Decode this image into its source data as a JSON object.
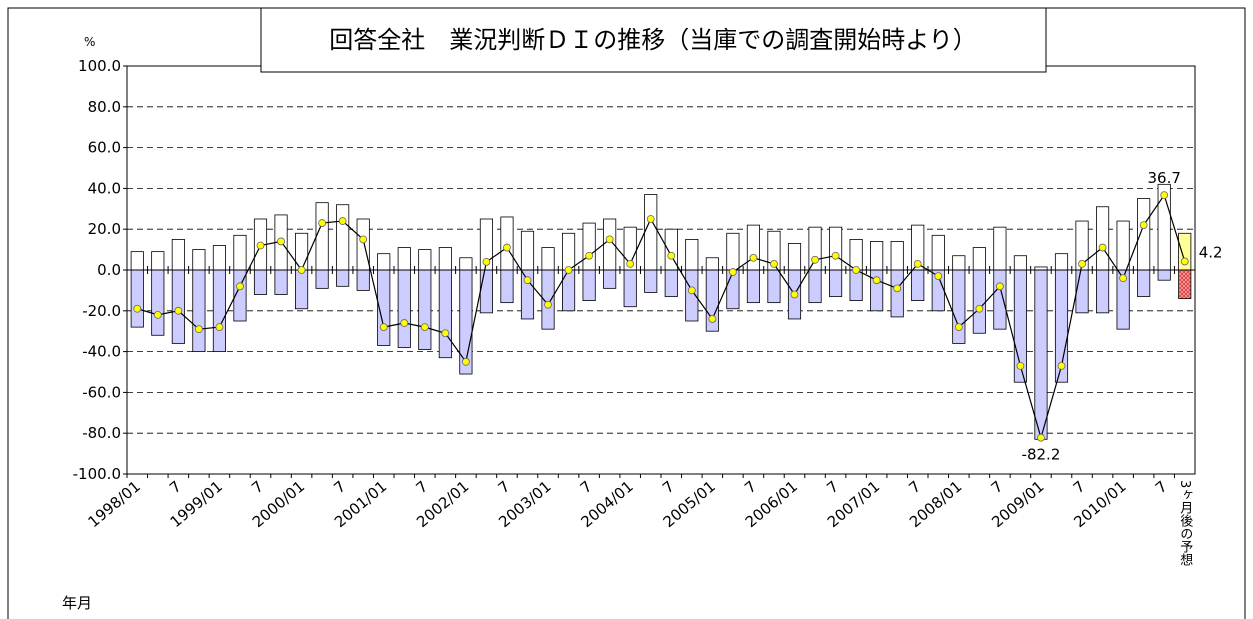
{
  "chart_data": {
    "type": "combo",
    "title": "回答全社　業況判断ＤＩの推移（当庫での調査開始時より）",
    "y_label": "%",
    "x_label": "年月",
    "categories": [
      "1998/01",
      null,
      "7",
      null,
      "1999/01",
      null,
      "7",
      null,
      "2000/01",
      null,
      "7",
      null,
      "2001/01",
      null,
      "7",
      null,
      "2002/01",
      null,
      "7",
      null,
      "2003/01",
      null,
      "7",
      null,
      "2004/01",
      null,
      "7",
      null,
      "2005/01",
      null,
      "7",
      null,
      "2006/01",
      null,
      "7",
      null,
      "2007/01",
      null,
      "7",
      null,
      "2008/01",
      null,
      "7",
      null,
      "2009/01",
      null,
      "7",
      null,
      "2010/01",
      null,
      "7",
      "3ヶ月後の予想"
    ],
    "series": [
      {
        "type": "bar",
        "color": "#ffffff",
        "last_color": "#ffff99",
        "values": [
          9,
          9,
          15,
          10,
          12,
          17,
          25,
          27,
          18,
          33,
          32,
          25,
          8,
          11,
          10,
          11,
          6,
          25,
          26,
          19,
          11,
          18,
          23,
          25,
          21,
          37,
          20,
          15,
          6,
          18,
          22,
          19,
          13,
          21,
          21,
          15,
          14,
          14,
          22,
          17,
          7,
          11,
          21,
          7,
          1.5,
          8,
          24,
          31,
          24,
          35,
          42,
          18
        ]
      },
      {
        "type": "bar",
        "color": "#ccccff",
        "last_color": "#ff9999",
        "values": [
          -28,
          -32,
          -36,
          -40,
          -40,
          -25,
          -12,
          -12,
          -19,
          -9,
          -8,
          -10,
          -37,
          -38,
          -39,
          -43,
          -51,
          -21,
          -16,
          -24,
          -29,
          -20,
          -15,
          -9,
          -18,
          -11,
          -13,
          -25,
          -30,
          -19,
          -16,
          -16,
          -24,
          -16,
          -13,
          -15,
          -20,
          -23,
          -15,
          -20,
          -36,
          -31,
          -29,
          -55,
          -83,
          -55,
          -21,
          -21,
          -29,
          -13,
          -5,
          -14
        ]
      },
      {
        "type": "line",
        "color": "#000000",
        "marker_color": "#ffff00",
        "values": [
          -19,
          -22,
          -20,
          -29,
          -28,
          -8,
          12,
          14,
          0,
          23,
          24,
          15,
          -28,
          -26,
          -28,
          -31,
          -45,
          4,
          11,
          -5,
          -17,
          0,
          7,
          15,
          3,
          25,
          7,
          -10,
          -24,
          -1,
          6,
          3,
          -12,
          5,
          7,
          0,
          -5,
          -9,
          3,
          -3,
          -28,
          -19,
          -8,
          -47,
          -82.2,
          -47,
          3,
          11,
          -4,
          22,
          36.7,
          4.2
        ],
        "value_labels": [
          null,
          null,
          null,
          null,
          null,
          null,
          null,
          null,
          null,
          null,
          null,
          null,
          null,
          null,
          null,
          null,
          null,
          null,
          null,
          null,
          null,
          null,
          null,
          null,
          null,
          null,
          null,
          null,
          null,
          null,
          null,
          null,
          null,
          null,
          null,
          null,
          null,
          null,
          null,
          null,
          null,
          null,
          null,
          null,
          "-82.2",
          null,
          null,
          null,
          null,
          null,
          "36.7",
          "4.2"
        ]
      }
    ],
    "ylim": [
      -100,
      100
    ],
    "yticks": [
      {
        "value": -100,
        "label": "-100.0"
      },
      {
        "value": -80,
        "label": "-80.0"
      },
      {
        "value": -60,
        "label": "-60.0"
      },
      {
        "value": -40,
        "label": "-40.0"
      },
      {
        "value": -20,
        "label": "-20.0"
      },
      {
        "value": 0,
        "label": "0.0"
      },
      {
        "value": 20,
        "label": "20.0"
      },
      {
        "value": 40,
        "label": "40.0"
      },
      {
        "value": 60,
        "label": "60.0"
      },
      {
        "value": 80,
        "label": "80.0"
      },
      {
        "value": 100,
        "label": "100.0"
      }
    ],
    "grid": true
  }
}
